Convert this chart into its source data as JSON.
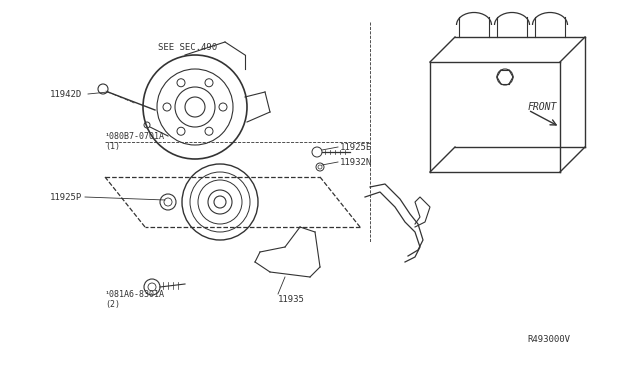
{
  "bg_color": "#ffffff",
  "line_color": "#333333",
  "label_color": "#333333",
  "fig_width": 6.4,
  "fig_height": 3.72,
  "dpi": 100,
  "labels": {
    "see_sec": "SEE SEC.490",
    "part_11942D": "11942D",
    "part_080B7": "¹080B7-0701A\n(1)",
    "part_11925E": "11925E",
    "part_11932N": "11932N",
    "part_11925P": "11925P",
    "part_081A6": "¹081A6-8301A\n(2)",
    "part_11935": "11935",
    "front_label": "FRONT",
    "ref_number": "R493000V"
  }
}
